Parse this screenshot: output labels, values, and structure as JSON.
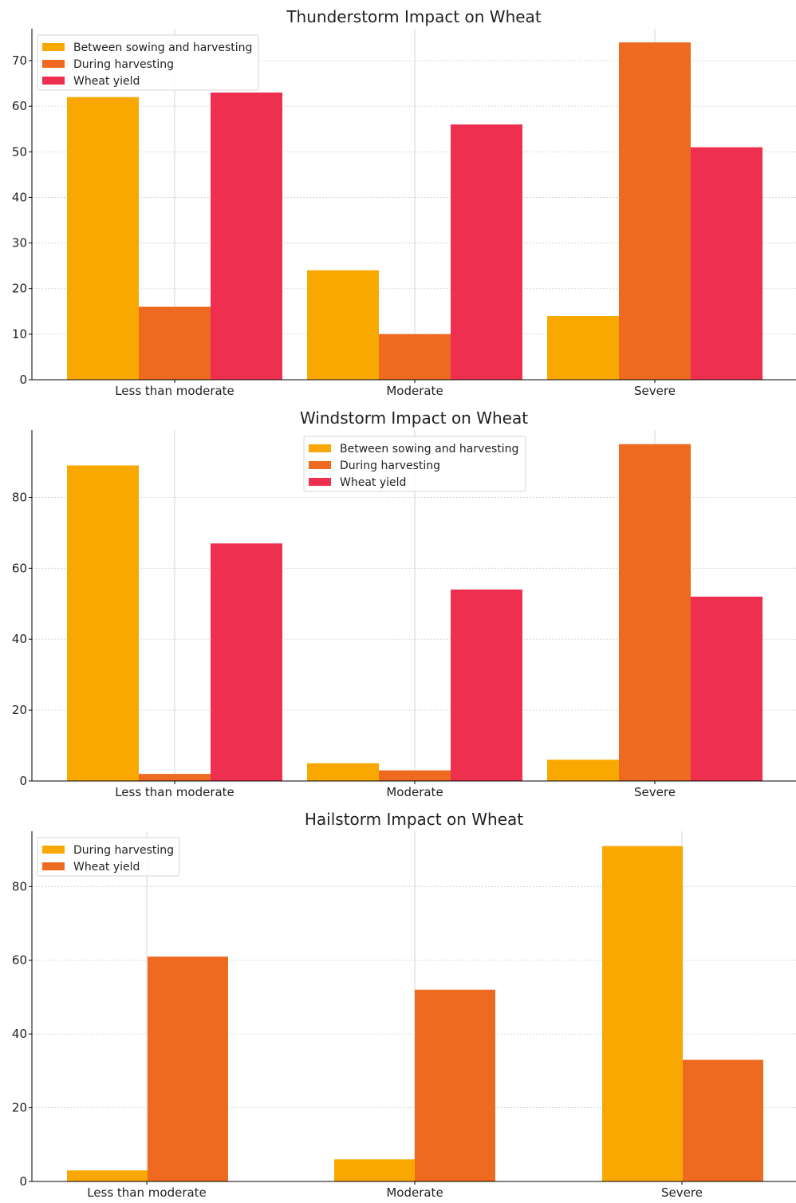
{
  "colors": {
    "series_1": "#F8A800",
    "series_2": "#EE6A20",
    "series_3": "#EE2F50",
    "axis": "#000000",
    "grid": "#CCCCCC"
  },
  "chart_data": [
    {
      "type": "bar",
      "title": "Thunderstorm Impact on Wheat",
      "xlabel": "",
      "ylabel": "",
      "categories": [
        "Less than moderate",
        "Moderate",
        "Severe"
      ],
      "series": [
        {
          "name": "Between sowing and harvesting",
          "color": "#F8A800",
          "values": [
            62,
            24,
            14
          ]
        },
        {
          "name": "During harvesting",
          "color": "#EE6A20",
          "values": [
            16,
            10,
            74
          ]
        },
        {
          "name": "Wheat yield",
          "color": "#EE2F50",
          "values": [
            63,
            56,
            51
          ]
        }
      ],
      "ylim": [
        0,
        77
      ],
      "yticks": [
        "0",
        "10",
        "20",
        "30",
        "40",
        "50",
        "60",
        "70"
      ],
      "grid": true,
      "legend_position": "top-left"
    },
    {
      "type": "bar",
      "title": "Windstorm Impact on Wheat",
      "xlabel": "",
      "ylabel": "",
      "categories": [
        "Less than moderate",
        "Moderate",
        "Severe"
      ],
      "series": [
        {
          "name": "Between sowing and harvesting",
          "color": "#F8A800",
          "values": [
            89,
            5,
            6
          ]
        },
        {
          "name": "During harvesting",
          "color": "#EE6A20",
          "values": [
            2,
            3,
            95
          ]
        },
        {
          "name": "Wheat yield",
          "color": "#EE2F50",
          "values": [
            67,
            54,
            52
          ]
        }
      ],
      "ylim": [
        0,
        99
      ],
      "yticks": [
        "0",
        "20",
        "40",
        "60",
        "80"
      ],
      "grid": true,
      "legend_position": "top-center"
    },
    {
      "type": "bar",
      "title": "Hailstorm Impact on Wheat",
      "xlabel": "",
      "ylabel": "",
      "categories": [
        "Less than moderate",
        "Moderate",
        "Severe"
      ],
      "series": [
        {
          "name": "During harvesting",
          "color": "#F8A800",
          "values": [
            3,
            6,
            91
          ]
        },
        {
          "name": "Wheat yield",
          "color": "#EE6A20",
          "values": [
            61,
            52,
            33
          ]
        }
      ],
      "ylim": [
        0,
        95
      ],
      "yticks": [
        "0",
        "20",
        "40",
        "60",
        "80"
      ],
      "grid": true,
      "legend_position": "top-left"
    }
  ]
}
